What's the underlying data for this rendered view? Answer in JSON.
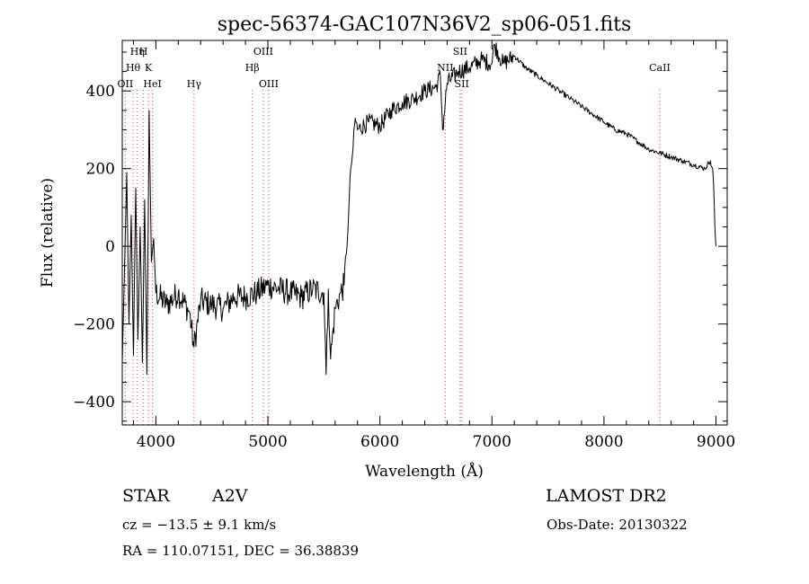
{
  "chart_data": {
    "type": "line",
    "title": "spec-56374-GAC107N36V2_sp06-051.fits",
    "xlabel": "Wavelength (Å)",
    "ylabel": "Flux (relative)",
    "xlim": [
      3700,
      9100
    ],
    "ylim": [
      -460,
      530
    ],
    "xticks": [
      4000,
      5000,
      6000,
      7000,
      8000,
      9000
    ],
    "yticks": [
      -400,
      -200,
      0,
      200,
      400
    ],
    "grid": false,
    "series": [
      {
        "x": [
          3700,
          3720,
          3740,
          3760,
          3780,
          3800,
          3820,
          3840,
          3860,
          3880,
          3900,
          3920,
          3940,
          3960,
          3980,
          4000,
          4100,
          4200,
          4300,
          4340,
          4400,
          4500,
          4600,
          4700,
          4800,
          4900,
          5000,
          5100,
          5200,
          5300,
          5400,
          5500,
          5520,
          5540,
          5560,
          5600,
          5650,
          5680,
          5700,
          5720,
          5740,
          5760,
          5780,
          5800,
          5900,
          6000,
          6100,
          6200,
          6300,
          6400,
          6500,
          6540,
          6560,
          6600,
          6700,
          6800,
          6900,
          7000,
          7020,
          7100,
          7200,
          7300,
          7400,
          7500,
          7600,
          7700,
          7800,
          7900,
          8000,
          8100,
          8200,
          8300,
          8400,
          8500,
          8600,
          8700,
          8800,
          8900,
          8950,
          8970,
          8980,
          8990,
          9000
        ],
        "y": [
          -300,
          -60,
          190,
          -200,
          80,
          -280,
          150,
          -240,
          50,
          -300,
          120,
          -330,
          350,
          -40,
          20,
          -120,
          -150,
          -120,
          -170,
          -260,
          -140,
          -150,
          -160,
          -130,
          -130,
          -120,
          -100,
          -110,
          -120,
          -130,
          -110,
          -120,
          -330,
          -110,
          -290,
          -160,
          -120,
          -100,
          -20,
          80,
          200,
          250,
          330,
          300,
          320,
          310,
          350,
          370,
          380,
          400,
          410,
          440,
          300,
          420,
          450,
          460,
          480,
          470,
          520,
          470,
          490,
          460,
          440,
          420,
          400,
          380,
          360,
          340,
          320,
          300,
          290,
          270,
          250,
          240,
          230,
          220,
          210,
          200,
          220,
          200,
          150,
          50,
          0
        ]
      }
    ],
    "lines": [
      {
        "name": "Hη",
        "x": 3835,
        "row": 0
      },
      {
        "name": "H",
        "x": 3889,
        "row": 0
      },
      {
        "name": "Hθ",
        "x": 3797,
        "row": 1
      },
      {
        "name": "K",
        "x": 3934,
        "row": 1
      },
      {
        "name": "OII",
        "x": 3727,
        "row": 2
      },
      {
        "name": "HeI",
        "x": 3970,
        "row": 2
      },
      {
        "name": "Hγ",
        "x": 4341,
        "row": 2
      },
      {
        "name": "OIII",
        "x": 4959,
        "row": 0
      },
      {
        "name": "Hβ",
        "x": 4861,
        "row": 1
      },
      {
        "name": "OIII",
        "x": 5007,
        "row": 2
      },
      {
        "name": "SII",
        "x": 6716,
        "row": 0
      },
      {
        "name": "NII",
        "x": 6583,
        "row": 1
      },
      {
        "name": "SII",
        "x": 6731,
        "row": 2
      },
      {
        "name": "CaII",
        "x": 8498,
        "row": 1
      }
    ]
  },
  "info": {
    "class": "STAR",
    "subclass": "A2V",
    "survey": "LAMOST DR2",
    "cz": "cz = −13.5 ± 9.1 km/s",
    "obs_date": "Obs-Date: 20130322",
    "coords": "RA = 110.07151, DEC =  36.38839"
  }
}
